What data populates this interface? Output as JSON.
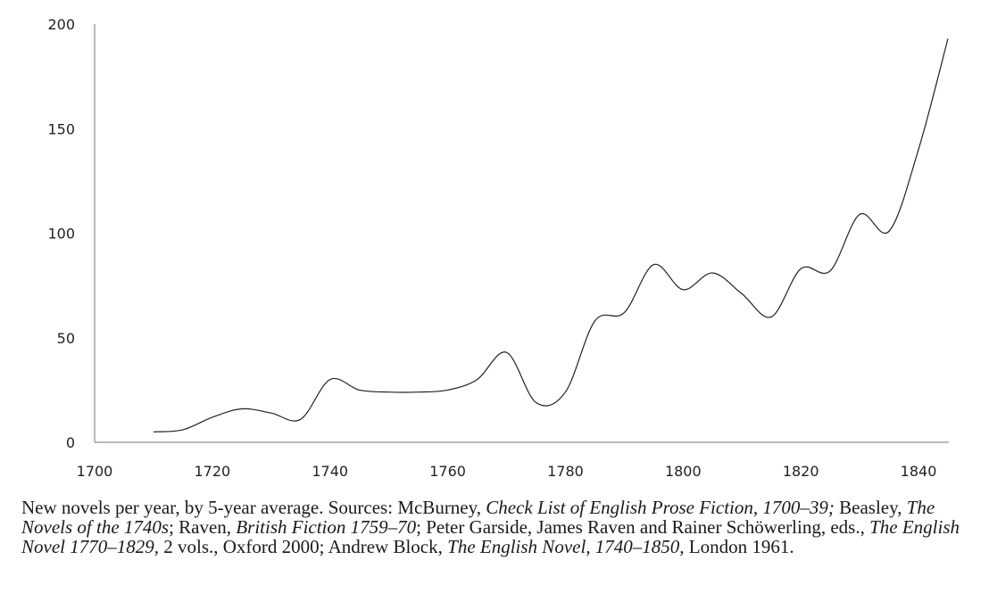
{
  "chart_data": {
    "type": "line",
    "title": "",
    "xlabel": "",
    "ylabel": "",
    "xlim": [
      1700,
      1845
    ],
    "ylim": [
      0,
      200
    ],
    "x_ticks": [
      1700,
      1720,
      1740,
      1760,
      1780,
      1800,
      1820,
      1840
    ],
    "y_ticks": [
      0,
      50,
      100,
      150,
      200
    ],
    "grid": false,
    "legend": "none",
    "line_color": "#222222",
    "series": [
      {
        "x": [
          1710,
          1715,
          1720,
          1725,
          1730,
          1735,
          1740,
          1745,
          1750,
          1755,
          1760,
          1765,
          1770,
          1775,
          1780,
          1785,
          1790,
          1795,
          1800,
          1805,
          1810,
          1815,
          1820,
          1825,
          1830,
          1835,
          1840,
          1845
        ],
        "values": [
          5,
          6,
          12,
          16,
          14,
          11,
          30,
          25,
          24,
          24,
          25,
          30,
          43,
          19,
          24,
          58,
          62,
          85,
          73,
          81,
          71,
          60,
          83,
          82,
          109,
          101,
          140,
          193
        ]
      }
    ]
  },
  "caption": {
    "parts": [
      {
        "text": "New novels per year, by 5-year average. Sources: McBurney, ",
        "italic": false
      },
      {
        "text": "Check List of English Prose Fiction, 1700–39;",
        "italic": true
      },
      {
        "text": " Beasley, ",
        "italic": false
      },
      {
        "text": "The Novels of the 1740s",
        "italic": true
      },
      {
        "text": "; Raven, ",
        "italic": false
      },
      {
        "text": "British Fiction 1759–70",
        "italic": true
      },
      {
        "text": "; Peter Garside, James Raven and Rainer Schöwerling, eds., ",
        "italic": false
      },
      {
        "text": "The English Novel 1770–1829,",
        "italic": true
      },
      {
        "text": " 2 vols., Oxford 2000; Andrew Block, ",
        "italic": false
      },
      {
        "text": "The English Novel, 1740–1850",
        "italic": true
      },
      {
        "text": ", London 1961.",
        "italic": false
      }
    ]
  }
}
